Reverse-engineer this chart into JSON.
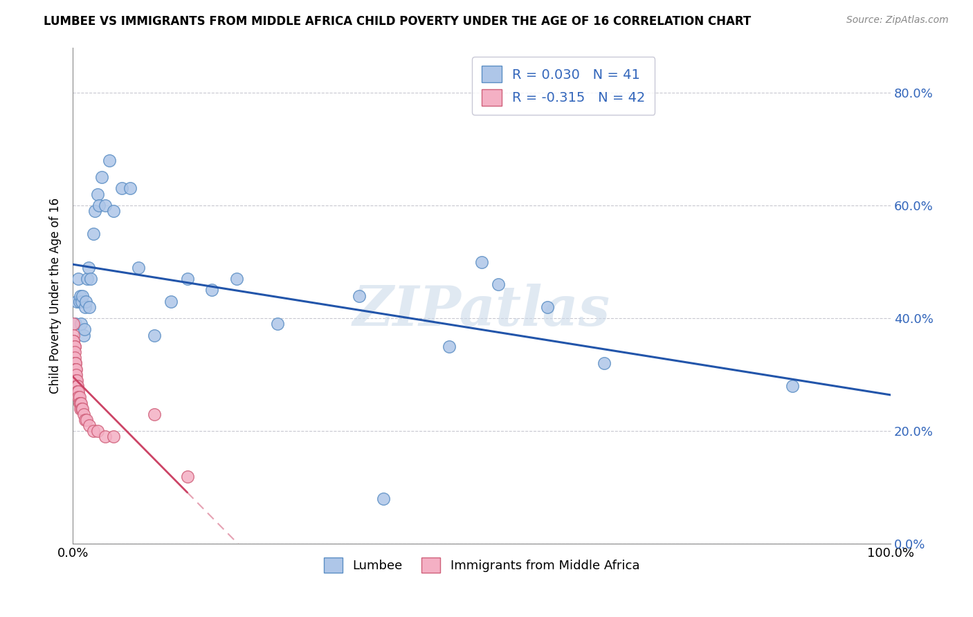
{
  "title": "LUMBEE VS IMMIGRANTS FROM MIDDLE AFRICA CHILD POVERTY UNDER THE AGE OF 16 CORRELATION CHART",
  "source": "Source: ZipAtlas.com",
  "ylabel": "Child Poverty Under the Age of 16",
  "xlim": [
    0,
    1.0
  ],
  "ylim": [
    0,
    0.88
  ],
  "yticks": [
    0.0,
    0.2,
    0.4,
    0.6,
    0.8
  ],
  "ytick_labels": [
    "0.0%",
    "20.0%",
    "40.0%",
    "60.0%",
    "80.0%"
  ],
  "xticks": [
    0.0,
    0.5,
    1.0
  ],
  "xtick_labels": [
    "0.0%",
    "",
    "100.0%"
  ],
  "legend_R1": "R = 0.030",
  "legend_N1": "N = 41",
  "legend_R2": "R = -0.315",
  "legend_N2": "N = 42",
  "legend_label1": "Lumbee",
  "legend_label2": "Immigrants from Middle Africa",
  "color_blue": "#aec6e8",
  "color_blue_edge": "#5b8ec4",
  "color_blue_line": "#2255aa",
  "color_pink": "#f4b0c4",
  "color_pink_edge": "#d0607a",
  "color_pink_line": "#cc4466",
  "color_text_blue": "#3366bb",
  "watermark": "ZIPatlas",
  "lumbee_x": [
    0.003,
    0.005,
    0.007,
    0.008,
    0.009,
    0.01,
    0.011,
    0.012,
    0.013,
    0.014,
    0.015,
    0.016,
    0.018,
    0.019,
    0.02,
    0.022,
    0.025,
    0.027,
    0.03,
    0.032,
    0.035,
    0.04,
    0.045,
    0.05,
    0.06,
    0.07,
    0.08,
    0.1,
    0.12,
    0.14,
    0.17,
    0.2,
    0.25,
    0.35,
    0.5,
    0.52,
    0.65,
    0.88,
    0.38,
    0.46,
    0.58
  ],
  "lumbee_y": [
    0.39,
    0.43,
    0.47,
    0.43,
    0.44,
    0.39,
    0.43,
    0.44,
    0.37,
    0.38,
    0.42,
    0.43,
    0.47,
    0.49,
    0.42,
    0.47,
    0.55,
    0.59,
    0.62,
    0.6,
    0.65,
    0.6,
    0.68,
    0.59,
    0.63,
    0.63,
    0.49,
    0.37,
    0.43,
    0.47,
    0.45,
    0.47,
    0.39,
    0.44,
    0.5,
    0.46,
    0.32,
    0.28,
    0.08,
    0.35,
    0.42
  ],
  "immigrants_x": [
    0.001,
    0.001,
    0.001,
    0.001,
    0.002,
    0.002,
    0.002,
    0.002,
    0.002,
    0.003,
    0.003,
    0.003,
    0.003,
    0.003,
    0.004,
    0.004,
    0.004,
    0.005,
    0.005,
    0.005,
    0.006,
    0.006,
    0.006,
    0.007,
    0.007,
    0.008,
    0.008,
    0.009,
    0.009,
    0.01,
    0.011,
    0.012,
    0.013,
    0.015,
    0.017,
    0.02,
    0.025,
    0.03,
    0.04,
    0.05,
    0.1,
    0.14
  ],
  "immigrants_y": [
    0.39,
    0.37,
    0.36,
    0.36,
    0.35,
    0.35,
    0.34,
    0.33,
    0.32,
    0.32,
    0.32,
    0.31,
    0.31,
    0.3,
    0.31,
    0.3,
    0.29,
    0.29,
    0.28,
    0.28,
    0.28,
    0.27,
    0.27,
    0.27,
    0.26,
    0.26,
    0.25,
    0.25,
    0.24,
    0.25,
    0.24,
    0.24,
    0.23,
    0.22,
    0.22,
    0.21,
    0.2,
    0.2,
    0.19,
    0.19,
    0.23,
    0.12
  ],
  "pink_line_solid_end": 0.14,
  "pink_line_dashed_end": 0.55
}
